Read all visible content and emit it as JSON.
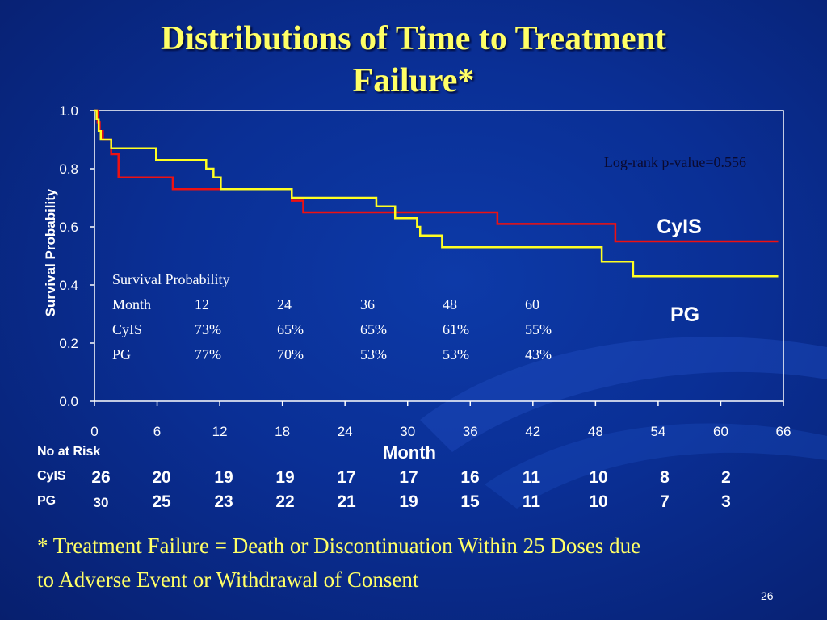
{
  "slide": {
    "title_line1": "Distributions of Time to Treatment",
    "title_line2": "Failure*",
    "footnote_line1": "* Treatment Failure = Death or Discontinuation Within 25 Doses due",
    "footnote_line2": "to Adverse Event or Withdrawal of Consent",
    "page_number": "26"
  },
  "chart_data": {
    "type": "line",
    "step": true,
    "xlabel": "Month",
    "ylabel": "Survival Probability",
    "xlim": [
      0,
      66
    ],
    "ylim": [
      0,
      1.0
    ],
    "x_ticks": [
      "0",
      "6",
      "12",
      "18",
      "24",
      "30",
      "36",
      "42",
      "48",
      "54",
      "60",
      "66"
    ],
    "y_ticks": [
      "0.0",
      "0.2",
      "0.4",
      "0.6",
      "0.8",
      "1.0"
    ],
    "grid": false,
    "annotation": "Log-rank p-value=0.556",
    "series": [
      {
        "name": "CyIS",
        "color": "#ee1111",
        "points": [
          [
            0,
            1.0
          ],
          [
            0.3,
            0.96
          ],
          [
            0.5,
            0.93
          ],
          [
            0.8,
            0.9
          ],
          [
            1.5,
            0.9
          ],
          [
            1.6,
            0.85
          ],
          [
            2.2,
            0.85
          ],
          [
            2.3,
            0.77
          ],
          [
            7.4,
            0.77
          ],
          [
            7.5,
            0.73
          ],
          [
            18.8,
            0.73
          ],
          [
            18.9,
            0.69
          ],
          [
            19.9,
            0.69
          ],
          [
            20.0,
            0.65
          ],
          [
            38.5,
            0.65
          ],
          [
            38.6,
            0.61
          ],
          [
            49.8,
            0.61
          ],
          [
            49.9,
            0.55
          ],
          [
            65.5,
            0.55
          ]
        ]
      },
      {
        "name": "PG",
        "color": "#ffff22",
        "points": [
          [
            0,
            1.0
          ],
          [
            0.2,
            0.97
          ],
          [
            0.4,
            0.93
          ],
          [
            0.6,
            0.9
          ],
          [
            1.5,
            0.9
          ],
          [
            1.6,
            0.87
          ],
          [
            5.8,
            0.87
          ],
          [
            5.9,
            0.83
          ],
          [
            10.6,
            0.83
          ],
          [
            10.7,
            0.8
          ],
          [
            11.3,
            0.8
          ],
          [
            11.4,
            0.77
          ],
          [
            12.0,
            0.77
          ],
          [
            12.1,
            0.73
          ],
          [
            18.8,
            0.73
          ],
          [
            18.9,
            0.7
          ],
          [
            26.9,
            0.7
          ],
          [
            27.0,
            0.67
          ],
          [
            28.7,
            0.67
          ],
          [
            28.8,
            0.63
          ],
          [
            30.8,
            0.63
          ],
          [
            30.9,
            0.6
          ],
          [
            31.1,
            0.6
          ],
          [
            31.2,
            0.57
          ],
          [
            33.2,
            0.57
          ],
          [
            33.3,
            0.53
          ],
          [
            48.5,
            0.53
          ],
          [
            48.6,
            0.48
          ],
          [
            51.5,
            0.48
          ],
          [
            51.6,
            0.43
          ],
          [
            65.5,
            0.43
          ]
        ]
      }
    ],
    "series_labels": [
      "CyIS",
      "PG"
    ],
    "inset_table": {
      "header": "Survival Probability",
      "rows": [
        [
          "Month",
          "12",
          "24",
          "36",
          "48",
          "60"
        ],
        [
          "CyIS",
          "73%",
          "65%",
          "65%",
          "61%",
          "55%"
        ],
        [
          "PG",
          "77%",
          "70%",
          "53%",
          "53%",
          "43%"
        ]
      ]
    },
    "number_at_risk": {
      "label": "No at Risk",
      "months": [
        0,
        6,
        12,
        18,
        24,
        30,
        36,
        42,
        48,
        54,
        60
      ],
      "CyIS": [
        "26",
        "20",
        "19",
        "19",
        "17",
        "17",
        "16",
        "11",
        "10",
        "8",
        "2"
      ],
      "PG": [
        "30",
        "25",
        "23",
        "22",
        "21",
        "19",
        "15",
        "11",
        "10",
        "7",
        "3"
      ]
    }
  }
}
